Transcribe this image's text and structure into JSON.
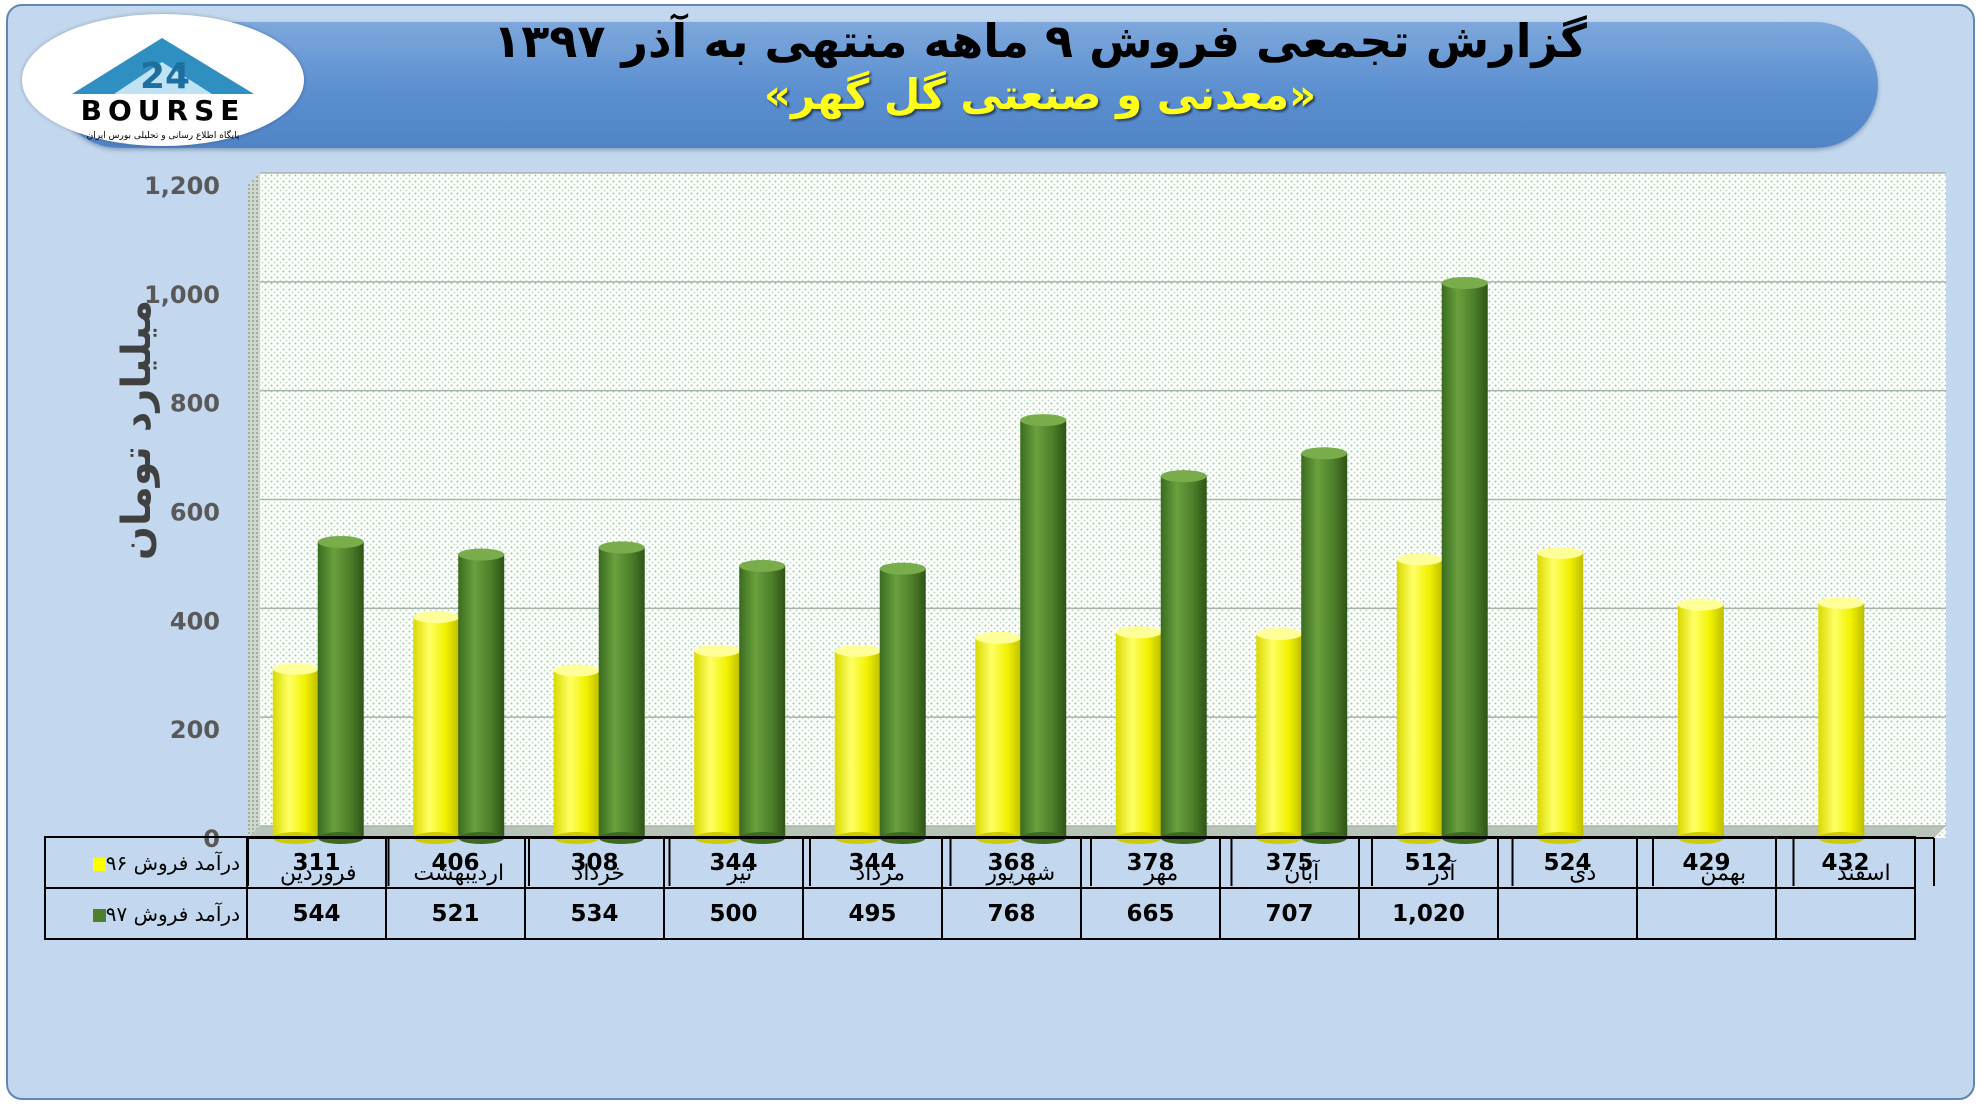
{
  "header": {
    "title_line1": "گزارش تجمعی فروش ۹ ماهه منتهی به آذر ۱۳۹۷",
    "title_line2": "«معدنی و صنعتی گل گهر»"
  },
  "logo": {
    "text": "BOURSE",
    "tagline": "پایگاه اطلاع رسانی و تحلیلی بورس ایران",
    "icon": "24-mountain-logo-icon"
  },
  "colors": {
    "series_96": "#ffff00",
    "series_97": "#4e7f2a",
    "background": "#c3d8ee",
    "banner": "#5b8fd0",
    "title_highlight": "#ffff1a"
  },
  "chart_data": {
    "type": "bar",
    "ylabel": "میلیارد تومان",
    "ylim": [
      0,
      1200
    ],
    "yticks": [
      "0",
      "200",
      "400",
      "600",
      "800",
      "1,000",
      "1,200"
    ],
    "grid": true,
    "legend": "table-below",
    "categories": [
      "فروردین",
      "اردیبهشت",
      "خرداد",
      "تیر",
      "مرداد",
      "شهریور",
      "مهر",
      "آبان",
      "آذر",
      "دی",
      "بهمن",
      "اسفند"
    ],
    "series": [
      {
        "name": "درآمد فروش ۹۶",
        "values": [
          311,
          406,
          308,
          344,
          344,
          368,
          378,
          375,
          512,
          524,
          429,
          432
        ],
        "labels": [
          "311",
          "406",
          "308",
          "344",
          "344",
          "368",
          "378",
          "375",
          "512",
          "524",
          "429",
          "432"
        ]
      },
      {
        "name": "درآمد فروش ۹۷",
        "values": [
          544,
          521,
          534,
          500,
          495,
          768,
          665,
          707,
          1020,
          null,
          null,
          null
        ],
        "labels": [
          "544",
          "521",
          "534",
          "500",
          "495",
          "768",
          "665",
          "707",
          "1,020",
          "",
          "",
          ""
        ]
      }
    ]
  }
}
